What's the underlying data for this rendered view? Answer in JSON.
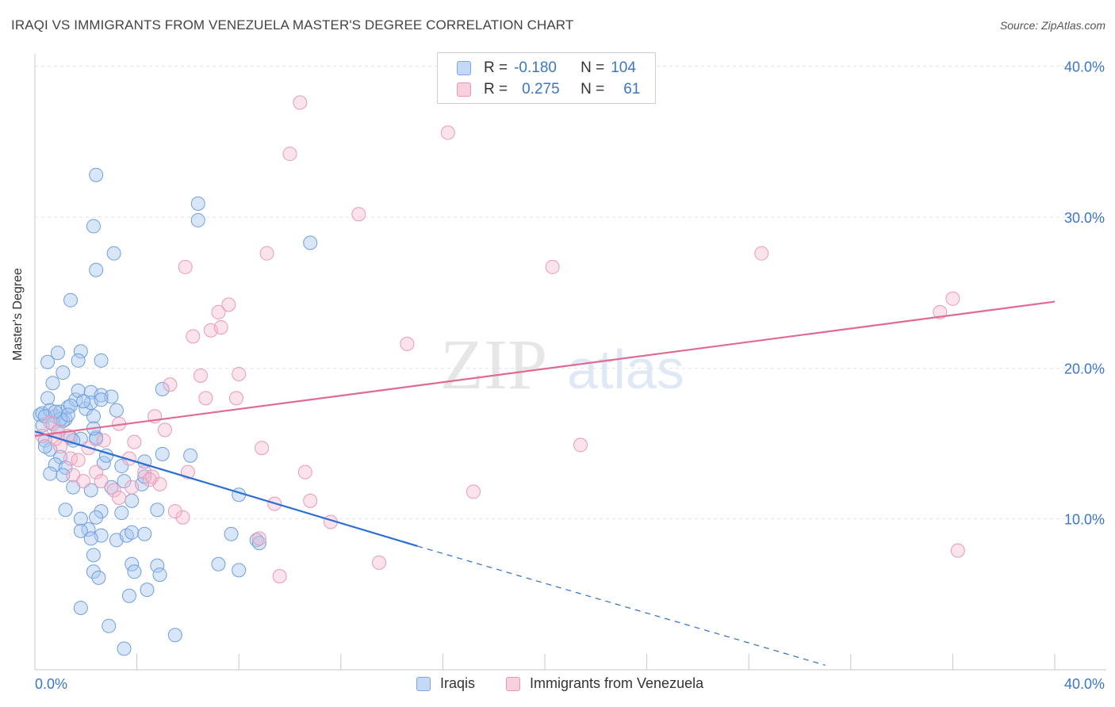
{
  "header": {
    "title": "IRAQI VS IMMIGRANTS FROM VENEZUELA MASTER'S DEGREE CORRELATION CHART",
    "source": "Source: ZipAtlas.com"
  },
  "watermark": {
    "part1": "ZIP",
    "part2": "atlas"
  },
  "legend": {
    "rows": [
      {
        "r_label": "R =",
        "r_value": "-0.180",
        "n_label": "N =",
        "n_value": "104",
        "color": "#a9c8f0"
      },
      {
        "r_label": "R =",
        "r_value": "0.275",
        "n_label": "N =",
        "n_value": "61",
        "color": "#f5b8cc"
      }
    ]
  },
  "bottom_legend": {
    "items": [
      {
        "label": "Iraqis",
        "color": "#a9c8f0"
      },
      {
        "label": "Immigrants from Venezuela",
        "color": "#f5b8cc"
      }
    ]
  },
  "colors": {
    "blue_point": "#a9c8f0",
    "blue_line": "#2b6fd4",
    "pink_point": "#f5b8cc",
    "pink_line": "#e06a94",
    "axis_text": "#3a76c9",
    "grid": "#e2e2e2"
  },
  "chart_data": {
    "type": "scatter",
    "title": "IRAQI VS IMMIGRANTS FROM VENEZUELA MASTER'S DEGREE CORRELATION CHART",
    "xlabel": "",
    "ylabel": "Master's Degree",
    "xlim": [
      0,
      40
    ],
    "ylim": [
      0,
      40.0
    ],
    "x_tick_labels": [
      "0.0%",
      "40.0%"
    ],
    "y_tick_labels": [
      "10.0%",
      "20.0%",
      "30.0%",
      "40.0%"
    ],
    "y_ticks": [
      10,
      20,
      30,
      40
    ],
    "grid": true,
    "legend_position": "top-center",
    "series": [
      {
        "name": "Iraqis",
        "r": -0.18,
        "n": 104,
        "trend": {
          "x": [
            0,
            15
          ],
          "y": [
            15.8,
            8.2
          ],
          "dashed_to_x": 31,
          "dashed_to_y": 0.3
        },
        "points": [
          [
            0.2,
            16.9
          ],
          [
            0.3,
            16.2
          ],
          [
            0.4,
            15.2
          ],
          [
            0.5,
            18.0
          ],
          [
            0.3,
            17.0
          ],
          [
            0.6,
            17.2
          ],
          [
            0.8,
            16.8
          ],
          [
            1.0,
            17.1
          ],
          [
            0.4,
            16.8
          ],
          [
            0.7,
            16.3
          ],
          [
            0.9,
            15.8
          ],
          [
            1.2,
            16.6
          ],
          [
            1.4,
            15.4
          ],
          [
            0.5,
            20.4
          ],
          [
            0.9,
            21.0
          ],
          [
            1.1,
            16.5
          ],
          [
            1.3,
            17.4
          ],
          [
            1.6,
            17.9
          ],
          [
            2.0,
            17.3
          ],
          [
            2.3,
            16.8
          ],
          [
            1.7,
            18.5
          ],
          [
            2.2,
            18.4
          ],
          [
            2.6,
            18.2
          ],
          [
            3.0,
            18.1
          ],
          [
            3.2,
            17.2
          ],
          [
            1.8,
            15.3
          ],
          [
            1.5,
            15.2
          ],
          [
            2.4,
            15.4
          ],
          [
            0.6,
            14.6
          ],
          [
            1.0,
            14.1
          ],
          [
            0.8,
            13.6
          ],
          [
            0.6,
            13.0
          ],
          [
            1.2,
            13.4
          ],
          [
            2.7,
            13.7
          ],
          [
            2.8,
            14.2
          ],
          [
            3.4,
            13.5
          ],
          [
            4.3,
            13.8
          ],
          [
            5.0,
            14.3
          ],
          [
            6.1,
            14.2
          ],
          [
            0.4,
            14.8
          ],
          [
            1.1,
            12.9
          ],
          [
            1.5,
            12.1
          ],
          [
            2.2,
            11.9
          ],
          [
            3.0,
            12.1
          ],
          [
            3.5,
            12.5
          ],
          [
            4.2,
            12.3
          ],
          [
            4.3,
            12.8
          ],
          [
            3.8,
            11.2
          ],
          [
            2.6,
            10.5
          ],
          [
            3.4,
            10.4
          ],
          [
            1.2,
            10.6
          ],
          [
            1.8,
            10.0
          ],
          [
            2.4,
            10.1
          ],
          [
            2.1,
            9.3
          ],
          [
            1.8,
            9.2
          ],
          [
            2.6,
            8.9
          ],
          [
            3.2,
            8.6
          ],
          [
            3.6,
            8.9
          ],
          [
            3.8,
            9.1
          ],
          [
            4.3,
            9.0
          ],
          [
            2.2,
            8.7
          ],
          [
            2.3,
            7.6
          ],
          [
            3.8,
            7.0
          ],
          [
            3.9,
            6.5
          ],
          [
            4.8,
            6.9
          ],
          [
            4.9,
            6.3
          ],
          [
            2.3,
            6.5
          ],
          [
            2.5,
            6.1
          ],
          [
            3.7,
            4.9
          ],
          [
            4.4,
            5.3
          ],
          [
            1.8,
            4.1
          ],
          [
            2.9,
            2.9
          ],
          [
            3.5,
            1.4
          ],
          [
            5.5,
            2.3
          ],
          [
            7.7,
            9.0
          ],
          [
            8.0,
            6.6
          ],
          [
            7.2,
            7.0
          ],
          [
            8.7,
            8.6
          ],
          [
            8.8,
            8.4
          ],
          [
            8.0,
            11.6
          ],
          [
            2.4,
            32.8
          ],
          [
            2.3,
            29.4
          ],
          [
            3.1,
            27.6
          ],
          [
            2.4,
            26.5
          ],
          [
            1.4,
            24.5
          ],
          [
            6.4,
            30.9
          ],
          [
            6.4,
            29.8
          ],
          [
            10.8,
            28.3
          ],
          [
            0.7,
            19.0
          ],
          [
            1.1,
            19.7
          ],
          [
            1.8,
            21.1
          ],
          [
            2.6,
            20.5
          ],
          [
            1.7,
            20.5
          ],
          [
            5.0,
            18.6
          ],
          [
            2.4,
            15.3
          ],
          [
            2.2,
            17.7
          ],
          [
            1.4,
            17.5
          ],
          [
            2.6,
            17.9
          ],
          [
            4.8,
            10.6
          ],
          [
            1.0,
            16.6
          ],
          [
            1.3,
            16.9
          ],
          [
            0.8,
            17.1
          ],
          [
            1.9,
            17.8
          ],
          [
            2.3,
            16.0
          ]
        ]
      },
      {
        "name": "Immigrants from Venezuela",
        "r": 0.275,
        "n": 61,
        "trend": {
          "x": [
            0,
            40
          ],
          "y": [
            15.5,
            24.4
          ]
        },
        "points": [
          [
            0.3,
            15.5
          ],
          [
            0.6,
            16.4
          ],
          [
            0.9,
            15.8
          ],
          [
            1.0,
            14.8
          ],
          [
            0.8,
            15.3
          ],
          [
            1.4,
            14.0
          ],
          [
            1.5,
            12.9
          ],
          [
            1.9,
            12.5
          ],
          [
            2.4,
            13.1
          ],
          [
            2.6,
            12.5
          ],
          [
            2.7,
            15.2
          ],
          [
            3.1,
            11.9
          ],
          [
            3.3,
            11.4
          ],
          [
            3.7,
            14.0
          ],
          [
            3.9,
            15.1
          ],
          [
            3.8,
            12.1
          ],
          [
            4.3,
            13.1
          ],
          [
            4.6,
            12.8
          ],
          [
            4.9,
            12.3
          ],
          [
            5.1,
            15.9
          ],
          [
            4.7,
            16.8
          ],
          [
            5.3,
            18.9
          ],
          [
            5.8,
            10.1
          ],
          [
            5.5,
            10.5
          ],
          [
            6.0,
            13.1
          ],
          [
            6.2,
            22.1
          ],
          [
            6.5,
            19.5
          ],
          [
            6.7,
            18.0
          ],
          [
            6.9,
            22.5
          ],
          [
            7.2,
            23.7
          ],
          [
            7.3,
            22.7
          ],
          [
            7.6,
            24.2
          ],
          [
            7.9,
            18.0
          ],
          [
            8.0,
            19.6
          ],
          [
            8.8,
            8.7
          ],
          [
            8.9,
            14.7
          ],
          [
            9.1,
            27.6
          ],
          [
            9.4,
            11.0
          ],
          [
            9.6,
            6.2
          ],
          [
            10.0,
            34.2
          ],
          [
            10.4,
            37.6
          ],
          [
            10.6,
            13.1
          ],
          [
            10.8,
            11.2
          ],
          [
            11.6,
            9.8
          ],
          [
            12.7,
            30.2
          ],
          [
            13.5,
            7.1
          ],
          [
            14.6,
            21.6
          ],
          [
            16.2,
            35.6
          ],
          [
            17.2,
            11.8
          ],
          [
            20.3,
            26.7
          ],
          [
            21.4,
            14.9
          ],
          [
            28.5,
            27.6
          ],
          [
            35.5,
            23.7
          ],
          [
            36.0,
            24.6
          ],
          [
            36.2,
            7.9
          ],
          [
            5.9,
            26.7
          ],
          [
            1.7,
            13.9
          ],
          [
            2.1,
            14.7
          ],
          [
            1.3,
            15.5
          ],
          [
            4.5,
            12.6
          ],
          [
            3.3,
            16.3
          ]
        ]
      }
    ]
  }
}
